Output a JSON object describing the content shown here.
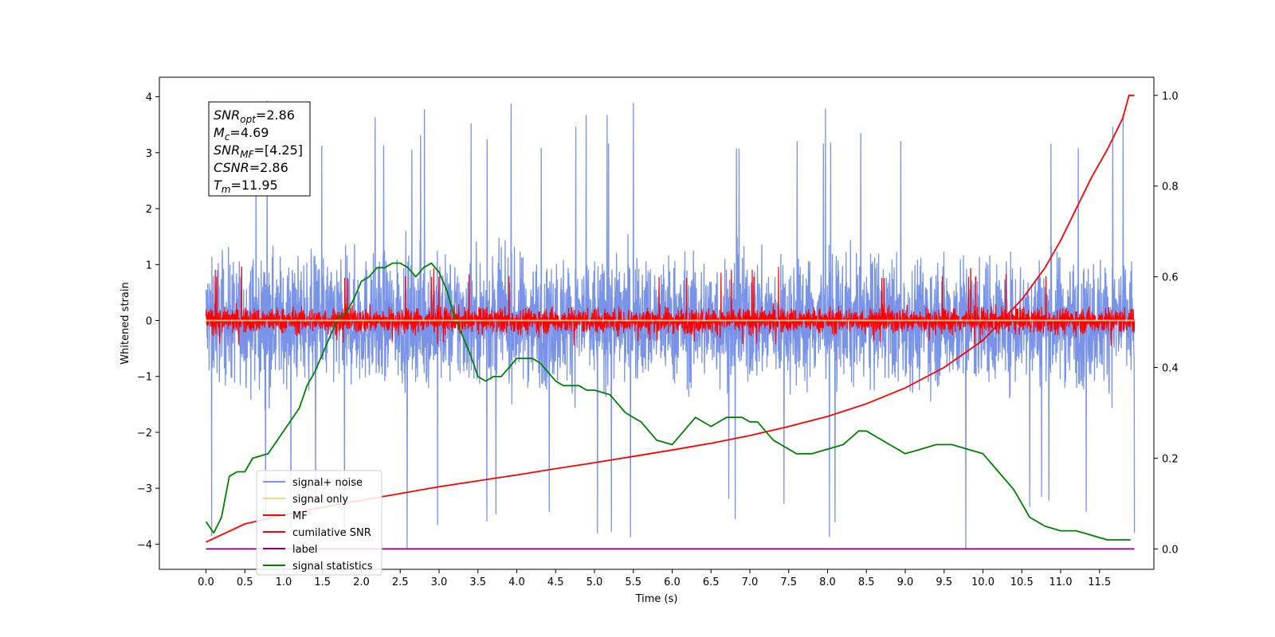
{
  "chart_data": {
    "type": "line",
    "xlabel": "Time (s)",
    "ylabel": "Whitened strain",
    "xlim": [
      -0.6,
      12.2
    ],
    "ylim": [
      -4.45,
      4.35
    ],
    "y2lim": [
      -0.045,
      1.04
    ],
    "x_ticks": [
      "0.0",
      "0.5",
      "1.0",
      "1.5",
      "2.0",
      "2.5",
      "3.0",
      "3.5",
      "4.0",
      "4.5",
      "5.0",
      "5.5",
      "6.0",
      "6.5",
      "7.0",
      "7.5",
      "8.0",
      "8.5",
      "9.0",
      "9.5",
      "10.0",
      "10.5",
      "11.0",
      "11.5"
    ],
    "y_ticks": [
      "4",
      "3",
      "2",
      "1",
      "0",
      "−1",
      "−2",
      "−3",
      "−4"
    ],
    "y2_ticks": [
      "1.0",
      "0.8",
      "0.6",
      "0.4",
      "0.2",
      "0.0"
    ],
    "grid": false,
    "legend_position": "lower-left",
    "annotation": {
      "lines": [
        {
          "base": "SNR",
          "sub": "opt",
          "value": "=2.86"
        },
        {
          "base": "M",
          "sub": "c",
          "value": "=4.69"
        },
        {
          "base": "SNR",
          "sub": "MF",
          "value": "=[4.25]"
        },
        {
          "base": "CSNR",
          "sub": "",
          "value": "=2.86"
        },
        {
          "base": "T",
          "sub": "m",
          "value": "=11.95"
        }
      ]
    },
    "series": [
      {
        "name": "signal+ noise",
        "color": "#7893e8",
        "axis": "left",
        "style": "noise",
        "x_range": [
          0,
          11.95
        ],
        "amplitude": 1.0,
        "max": 3.95,
        "min": -4.15
      },
      {
        "name": "signal only",
        "color": "#ffd27f",
        "axis": "left",
        "style": "flat",
        "x": [
          0,
          11.95
        ],
        "y": [
          0,
          0
        ]
      },
      {
        "name": "MF",
        "color": "#ff0000",
        "axis": "left",
        "style": "noise",
        "x_range": [
          0,
          11.95
        ],
        "amplitude": 0.2,
        "max": 0.97,
        "min": -0.45
      },
      {
        "name": "cumilative SNR",
        "color": "#ff0000",
        "axis": "right",
        "style": "curve",
        "x": [
          0,
          0.5,
          1,
          1.5,
          2,
          2.5,
          3,
          3.5,
          4,
          4.5,
          5,
          5.5,
          6,
          6.5,
          7,
          7.5,
          8,
          8.5,
          9,
          9.5,
          10,
          10.5,
          10.8,
          11,
          11.2,
          11.4,
          11.6,
          11.8,
          11.88,
          11.95
        ],
        "y": [
          0.015,
          0.055,
          0.075,
          0.092,
          0.107,
          0.122,
          0.137,
          0.15,
          0.163,
          0.177,
          0.19,
          0.204,
          0.218,
          0.233,
          0.25,
          0.27,
          0.292,
          0.32,
          0.355,
          0.4,
          0.46,
          0.55,
          0.62,
          0.68,
          0.75,
          0.82,
          0.88,
          0.95,
          1.0,
          1.0
        ]
      },
      {
        "name": "label",
        "color": "#800080",
        "axis": "right",
        "style": "flat",
        "x": [
          0,
          11.95
        ],
        "y": [
          0.0,
          0.0
        ]
      },
      {
        "name": "signal statistics",
        "color": "#008000",
        "axis": "right",
        "style": "curve",
        "x": [
          0,
          0.1,
          0.2,
          0.3,
          0.4,
          0.5,
          0.6,
          0.8,
          1.0,
          1.2,
          1.3,
          1.4,
          1.5,
          1.6,
          1.7,
          1.8,
          1.9,
          2.0,
          2.1,
          2.2,
          2.3,
          2.4,
          2.5,
          2.6,
          2.7,
          2.8,
          2.9,
          3.0,
          3.1,
          3.2,
          3.3,
          3.4,
          3.5,
          3.6,
          3.7,
          3.8,
          3.9,
          4.0,
          4.1,
          4.2,
          4.3,
          4.4,
          4.5,
          4.6,
          4.7,
          4.8,
          4.9,
          5.0,
          5.2,
          5.4,
          5.6,
          5.8,
          6.0,
          6.2,
          6.3,
          6.4,
          6.5,
          6.6,
          6.7,
          6.8,
          6.9,
          7.0,
          7.1,
          7.2,
          7.3,
          7.4,
          7.6,
          7.8,
          8.0,
          8.2,
          8.4,
          8.5,
          8.6,
          8.8,
          9.0,
          9.2,
          9.4,
          9.6,
          9.8,
          10.0,
          10.2,
          10.4,
          10.5,
          10.6,
          10.8,
          11.0,
          11.2,
          11.4,
          11.6,
          11.8,
          11.9
        ],
        "y": [
          0.06,
          0.035,
          0.07,
          0.16,
          0.17,
          0.17,
          0.2,
          0.21,
          0.26,
          0.31,
          0.36,
          0.39,
          0.43,
          0.47,
          0.51,
          0.52,
          0.55,
          0.59,
          0.6,
          0.62,
          0.62,
          0.63,
          0.63,
          0.62,
          0.6,
          0.62,
          0.63,
          0.61,
          0.57,
          0.51,
          0.47,
          0.43,
          0.38,
          0.37,
          0.38,
          0.38,
          0.4,
          0.42,
          0.42,
          0.42,
          0.41,
          0.39,
          0.37,
          0.36,
          0.36,
          0.36,
          0.35,
          0.35,
          0.34,
          0.3,
          0.28,
          0.24,
          0.23,
          0.27,
          0.29,
          0.28,
          0.27,
          0.28,
          0.29,
          0.29,
          0.29,
          0.28,
          0.28,
          0.26,
          0.24,
          0.23,
          0.21,
          0.21,
          0.22,
          0.23,
          0.26,
          0.26,
          0.25,
          0.23,
          0.21,
          0.22,
          0.23,
          0.23,
          0.22,
          0.21,
          0.17,
          0.13,
          0.1,
          0.07,
          0.05,
          0.04,
          0.04,
          0.03,
          0.02,
          0.02,
          0.02
        ]
      }
    ]
  }
}
